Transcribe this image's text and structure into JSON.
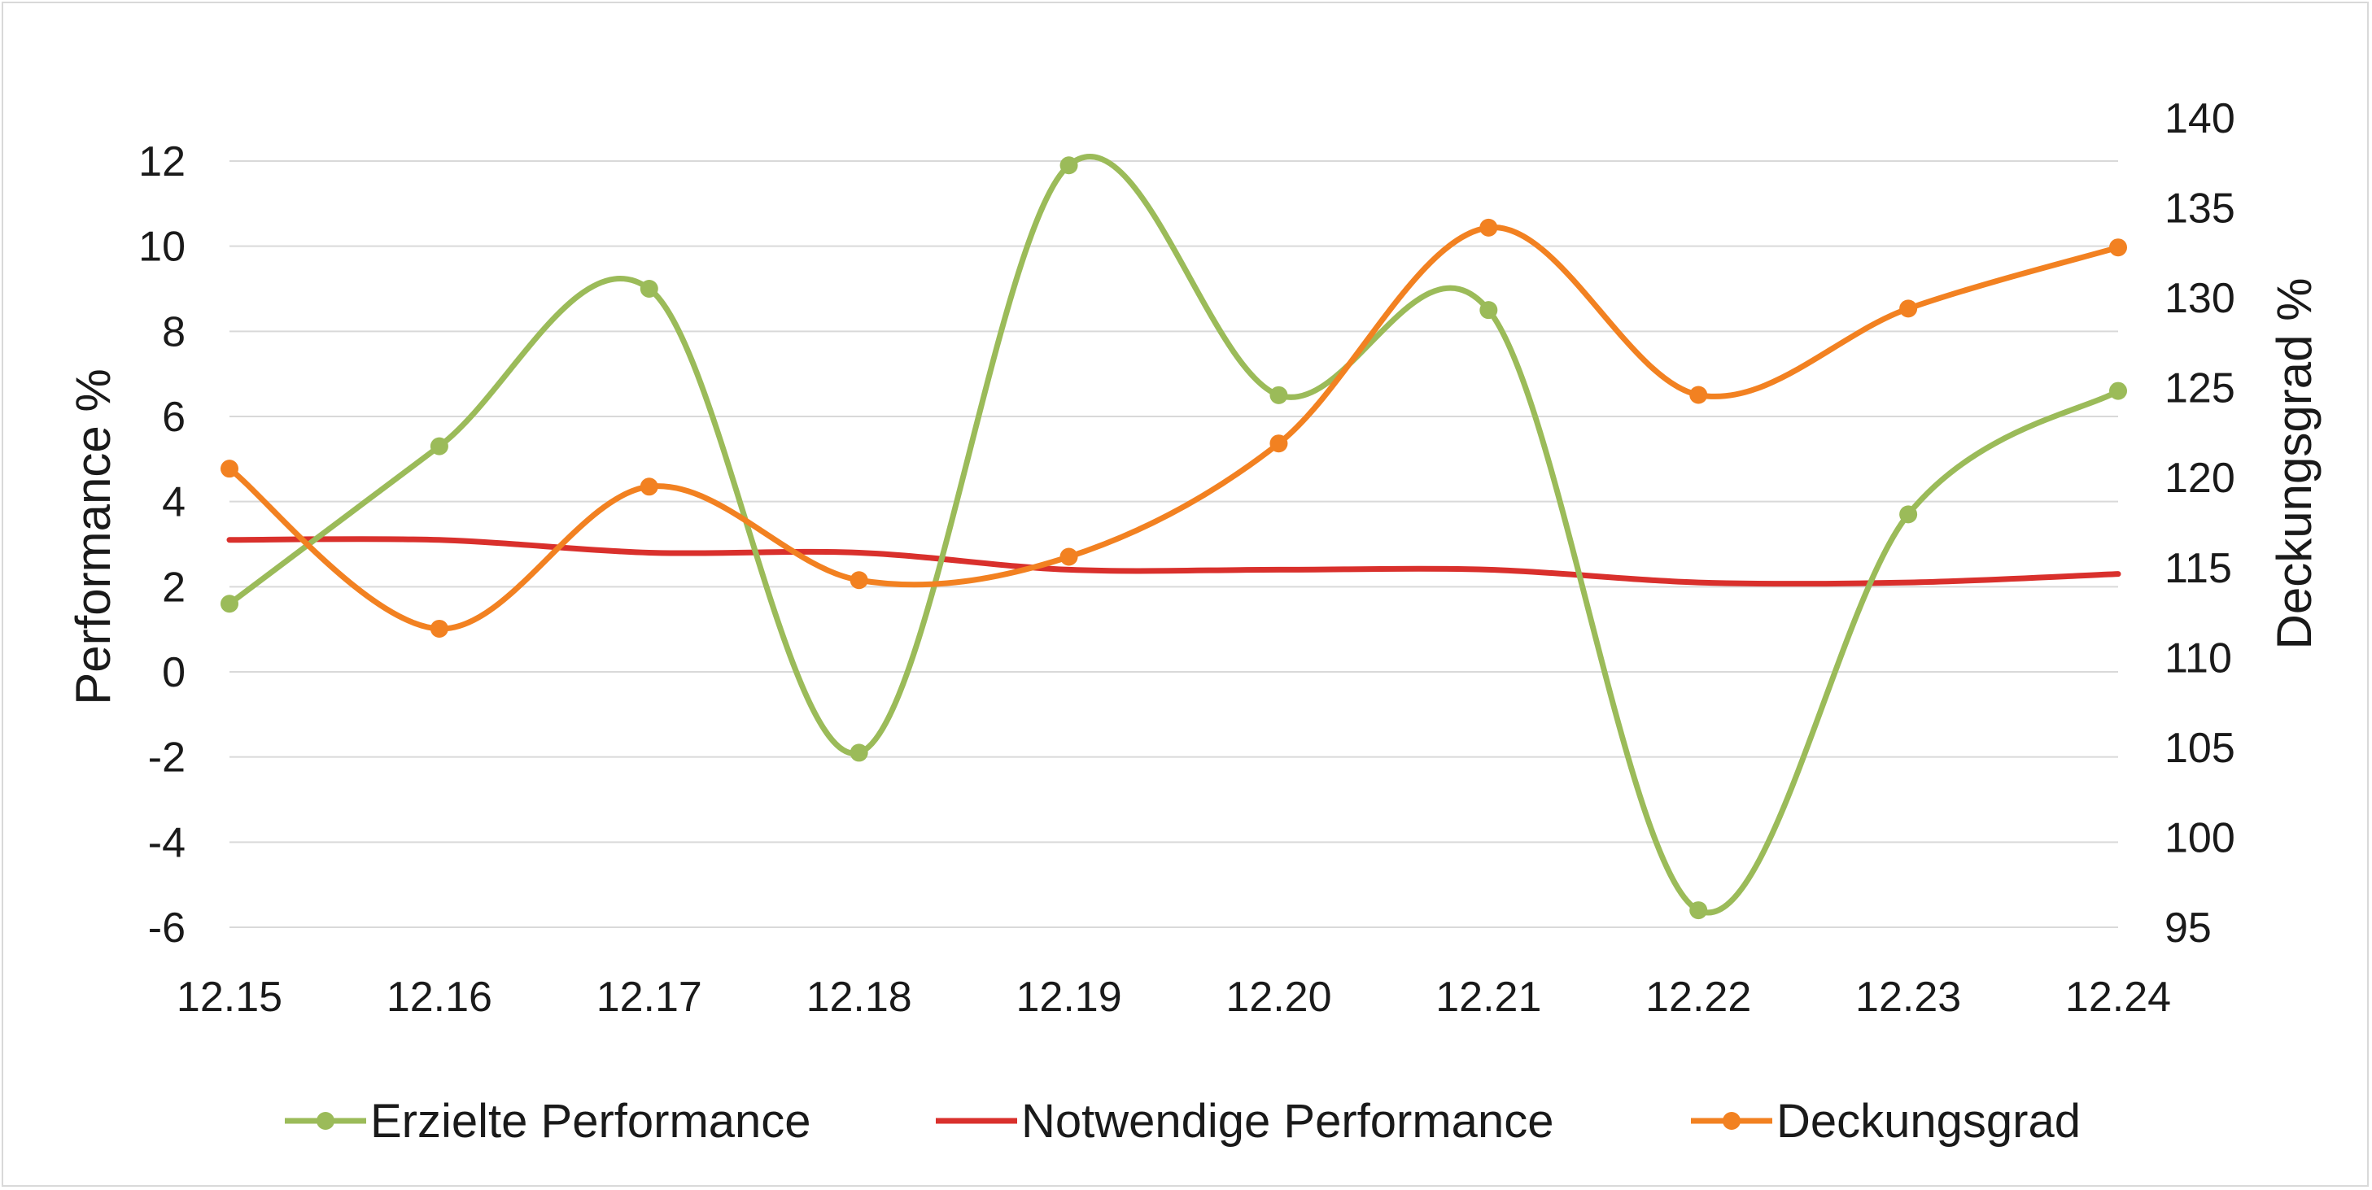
{
  "chart_data": {
    "type": "line",
    "categories": [
      "12.15",
      "12.16",
      "12.17",
      "12.18",
      "12.19",
      "12.20",
      "12.21",
      "12.22",
      "12.23",
      "12.24"
    ],
    "y_left": {
      "label": "Performance  %",
      "lim": [
        -6,
        12
      ],
      "ticks": [
        "-6",
        "-4",
        "-2",
        "0",
        "2",
        "4",
        "6",
        "8",
        "10",
        "12"
      ]
    },
    "y_right": {
      "label": "Deckungsgrad  %",
      "lim": [
        95,
        140
      ],
      "ticks": [
        "95",
        "100",
        "105",
        "110",
        "115",
        "120",
        "125",
        "130",
        "135",
        "140"
      ]
    },
    "grid": true,
    "smooth": true,
    "legend_position": "bottom",
    "series": [
      {
        "name": "Erzielte Performance",
        "axis": "left",
        "color": "#9bbb59",
        "markers": true,
        "values": [
          1.6,
          5.3,
          9.0,
          -1.9,
          11.9,
          6.5,
          8.5,
          -5.6,
          3.7,
          6.6
        ]
      },
      {
        "name": "Notwendige Performance",
        "axis": "left",
        "color": "#d9302c",
        "markers": false,
        "values": [
          3.1,
          3.1,
          2.8,
          2.8,
          2.4,
          2.4,
          2.4,
          2.1,
          2.1,
          2.3
        ]
      },
      {
        "name": "Deckungsgrad",
        "axis": "right",
        "color": "#f28121",
        "markers": true,
        "values": [
          120.5,
          111.6,
          119.5,
          114.3,
          115.6,
          121.9,
          133.9,
          124.6,
          129.4,
          132.8
        ]
      }
    ]
  }
}
